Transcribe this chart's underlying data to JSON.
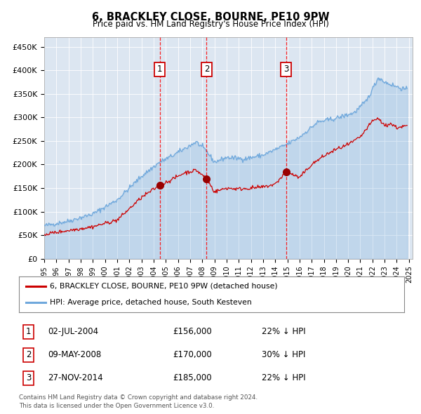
{
  "title": "6, BRACKLEY CLOSE, BOURNE, PE10 9PW",
  "subtitle": "Price paid vs. HM Land Registry's House Price Index (HPI)",
  "legend_line1": "6, BRACKLEY CLOSE, BOURNE, PE10 9PW (detached house)",
  "legend_line2": "HPI: Average price, detached house, South Kesteven",
  "footer1": "Contains HM Land Registry data © Crown copyright and database right 2024.",
  "footer2": "This data is licensed under the Open Government Licence v3.0.",
  "transactions": [
    {
      "num": 1,
      "date": "02-JUL-2004",
      "price": 156000,
      "pct": "22%",
      "dir": "↓"
    },
    {
      "num": 2,
      "date": "09-MAY-2008",
      "price": 170000,
      "pct": "30%",
      "dir": "↓"
    },
    {
      "num": 3,
      "date": "27-NOV-2014",
      "price": 185000,
      "pct": "22%",
      "dir": "↓"
    }
  ],
  "transaction_dates_decimal": [
    2004.5,
    2008.36,
    2014.9
  ],
  "transaction_prices": [
    156000,
    170000,
    185000
  ],
  "hpi_color": "#6fa8dc",
  "price_color": "#cc0000",
  "dot_color": "#990000",
  "bg_color": "#dce6f1",
  "ylim": [
    0,
    470000
  ],
  "yticks": [
    0,
    50000,
    100000,
    150000,
    200000,
    250000,
    300000,
    350000,
    400000,
    450000
  ]
}
